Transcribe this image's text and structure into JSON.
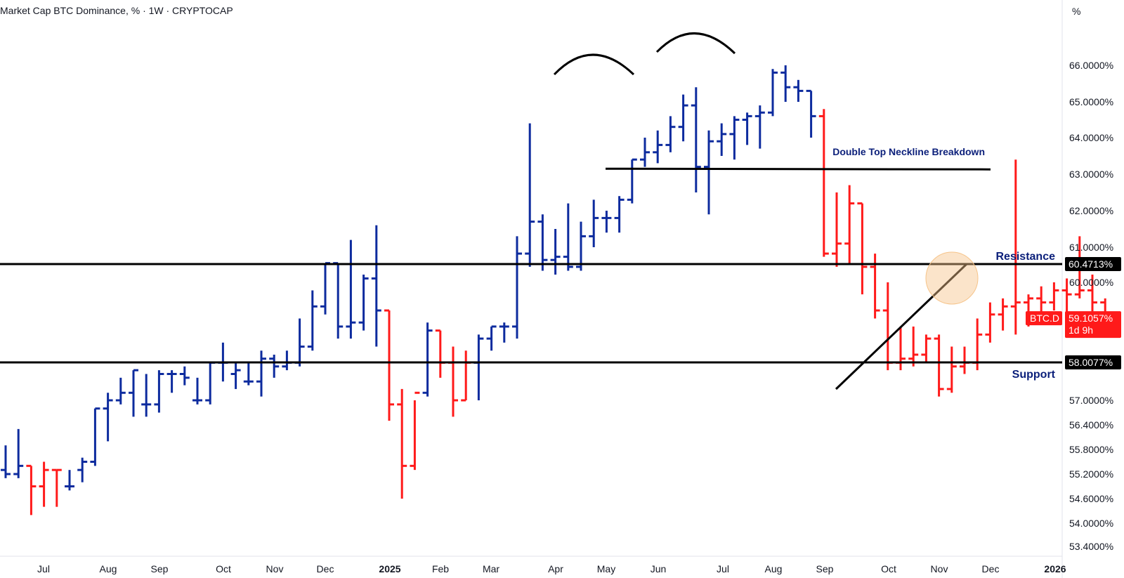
{
  "header": {
    "title": "Market Cap BTC Dominance, % · 1W · CRYPTOCAP"
  },
  "axis_unit": "%",
  "colors": {
    "up": "#0d2b9e",
    "down": "#ff1a1a",
    "line": "#000000",
    "label": "#0b1f7a",
    "highlight": "#f6c48a"
  },
  "chart_data": {
    "type": "ohlc",
    "symbol": "BTC.D",
    "interval": "1W",
    "y_ticks": [
      "66.0000%",
      "65.0000%",
      "64.0000%",
      "63.0000%",
      "62.0000%",
      "61.0000%",
      "60.0000%",
      "57.0000%",
      "56.4000%",
      "55.8000%",
      "55.2000%",
      "54.6000%",
      "54.0000%",
      "53.4000%"
    ],
    "x_ticks": [
      {
        "label": "Jul",
        "bold": false
      },
      {
        "label": "Aug",
        "bold": false
      },
      {
        "label": "Sep",
        "bold": false
      },
      {
        "label": "Oct",
        "bold": false
      },
      {
        "label": "Nov",
        "bold": false
      },
      {
        "label": "Dec",
        "bold": false
      },
      {
        "label": "2025",
        "bold": true
      },
      {
        "label": "Feb",
        "bold": false
      },
      {
        "label": "Mar",
        "bold": false
      },
      {
        "label": "Apr",
        "bold": false
      },
      {
        "label": "May",
        "bold": false
      },
      {
        "label": "Jun",
        "bold": false
      },
      {
        "label": "Jul",
        "bold": false
      },
      {
        "label": "Aug",
        "bold": false
      },
      {
        "label": "Sep",
        "bold": false
      },
      {
        "label": "Oct",
        "bold": false
      },
      {
        "label": "Nov",
        "bold": false
      },
      {
        "label": "Dec",
        "bold": false
      },
      {
        "label": "2026",
        "bold": true
      }
    ],
    "levels": [
      {
        "name": "Resistance",
        "value": 60.4713,
        "label": "60.4713%"
      },
      {
        "name": "Support",
        "value": 58.0077,
        "label": "58.0077%"
      }
    ],
    "neckline": {
      "label": "Double Top Neckline Breakdown",
      "value": 63.15
    },
    "current": {
      "symbol": "BTC.D",
      "value": 59.1057,
      "label": "59.1057%",
      "countdown": "1d 9h"
    },
    "bars": [
      {
        "o": 55.3,
        "h": 55.9,
        "l": 55.1,
        "c": 55.2,
        "up": true
      },
      {
        "o": 55.2,
        "h": 56.3,
        "l": 55.1,
        "c": 55.4,
        "up": true
      },
      {
        "o": 55.4,
        "h": 55.4,
        "l": 54.2,
        "c": 54.9,
        "up": false
      },
      {
        "o": 54.9,
        "h": 55.5,
        "l": 54.4,
        "c": 55.3,
        "up": false
      },
      {
        "o": 55.3,
        "h": 55.3,
        "l": 54.4,
        "c": 55.3,
        "up": false
      },
      {
        "o": 54.9,
        "h": 55.3,
        "l": 54.8,
        "c": 54.9,
        "up": true
      },
      {
        "o": 55.3,
        "h": 55.6,
        "l": 55.0,
        "c": 55.5,
        "up": true
      },
      {
        "o": 55.5,
        "h": 56.8,
        "l": 55.4,
        "c": 56.8,
        "up": true
      },
      {
        "o": 56.8,
        "h": 57.2,
        "l": 56.0,
        "c": 57.0,
        "up": true
      },
      {
        "o": 57.0,
        "h": 57.6,
        "l": 56.9,
        "c": 57.2,
        "up": true
      },
      {
        "o": 57.2,
        "h": 57.8,
        "l": 56.6,
        "c": 57.8,
        "up": true
      },
      {
        "o": 56.9,
        "h": 57.7,
        "l": 56.6,
        "c": 56.9,
        "up": true
      },
      {
        "o": 56.9,
        "h": 57.8,
        "l": 56.7,
        "c": 57.7,
        "up": true
      },
      {
        "o": 57.7,
        "h": 57.8,
        "l": 57.2,
        "c": 57.7,
        "up": true
      },
      {
        "o": 57.7,
        "h": 57.9,
        "l": 57.4,
        "c": 57.6,
        "up": true
      },
      {
        "o": 57.0,
        "h": 57.6,
        "l": 56.9,
        "c": 57.0,
        "up": true
      },
      {
        "o": 57.0,
        "h": 58.0,
        "l": 56.9,
        "c": 58.0,
        "up": true
      },
      {
        "o": 58.0,
        "h": 58.5,
        "l": 57.5,
        "c": 58.0,
        "up": true
      },
      {
        "o": 57.7,
        "h": 58.0,
        "l": 57.3,
        "c": 57.8,
        "up": true
      },
      {
        "o": 57.5,
        "h": 58.0,
        "l": 57.4,
        "c": 57.5,
        "up": true
      },
      {
        "o": 57.5,
        "h": 58.3,
        "l": 57.1,
        "c": 58.1,
        "up": true
      },
      {
        "o": 58.1,
        "h": 58.2,
        "l": 57.6,
        "c": 57.9,
        "up": true
      },
      {
        "o": 57.9,
        "h": 58.3,
        "l": 57.8,
        "c": 58.0,
        "up": true
      },
      {
        "o": 58.0,
        "h": 59.1,
        "l": 57.9,
        "c": 58.4,
        "up": true
      },
      {
        "o": 58.4,
        "h": 59.8,
        "l": 58.3,
        "c": 59.4,
        "up": true
      },
      {
        "o": 59.4,
        "h": 60.5,
        "l": 59.2,
        "c": 60.5,
        "up": true
      },
      {
        "o": 60.5,
        "h": 60.5,
        "l": 58.6,
        "c": 58.9,
        "up": true
      },
      {
        "o": 58.9,
        "h": 61.2,
        "l": 58.6,
        "c": 59.0,
        "up": true
      },
      {
        "o": 59.0,
        "h": 60.2,
        "l": 58.8,
        "c": 60.1,
        "up": true
      },
      {
        "o": 60.1,
        "h": 61.6,
        "l": 58.4,
        "c": 59.3,
        "up": true
      },
      {
        "o": 59.3,
        "h": 59.3,
        "l": 56.5,
        "c": 56.9,
        "up": false
      },
      {
        "o": 56.9,
        "h": 57.3,
        "l": 54.6,
        "c": 55.4,
        "up": false
      },
      {
        "o": 55.4,
        "h": 57.0,
        "l": 55.3,
        "c": 57.2,
        "up": false
      },
      {
        "o": 57.2,
        "h": 59.0,
        "l": 57.1,
        "c": 58.8,
        "up": true
      },
      {
        "o": 58.8,
        "h": 58.8,
        "l": 57.6,
        "c": 58.0,
        "up": false
      },
      {
        "o": 58.0,
        "h": 58.4,
        "l": 56.6,
        "c": 57.0,
        "up": false
      },
      {
        "o": 57.0,
        "h": 58.3,
        "l": 57.0,
        "c": 58.0,
        "up": false
      },
      {
        "o": 58.0,
        "h": 58.7,
        "l": 57.0,
        "c": 58.6,
        "up": true
      },
      {
        "o": 58.6,
        "h": 58.9,
        "l": 58.3,
        "c": 58.9,
        "up": true
      },
      {
        "o": 58.9,
        "h": 59.0,
        "l": 58.5,
        "c": 58.9,
        "up": true
      },
      {
        "o": 58.9,
        "h": 61.3,
        "l": 58.6,
        "c": 60.8,
        "up": true
      },
      {
        "o": 60.8,
        "h": 64.4,
        "l": 60.4,
        "c": 61.7,
        "up": true
      },
      {
        "o": 61.7,
        "h": 61.9,
        "l": 60.3,
        "c": 60.6,
        "up": true
      },
      {
        "o": 60.6,
        "h": 61.5,
        "l": 60.2,
        "c": 60.7,
        "up": true
      },
      {
        "o": 60.7,
        "h": 62.2,
        "l": 60.3,
        "c": 60.4,
        "up": true
      },
      {
        "o": 60.4,
        "h": 61.7,
        "l": 60.3,
        "c": 61.3,
        "up": true
      },
      {
        "o": 61.3,
        "h": 62.3,
        "l": 61.0,
        "c": 61.8,
        "up": true
      },
      {
        "o": 61.8,
        "h": 62.0,
        "l": 61.4,
        "c": 61.8,
        "up": true
      },
      {
        "o": 61.8,
        "h": 62.4,
        "l": 61.4,
        "c": 62.3,
        "up": true
      },
      {
        "o": 62.3,
        "h": 63.4,
        "l": 62.2,
        "c": 63.4,
        "up": true
      },
      {
        "o": 63.4,
        "h": 64.0,
        "l": 63.2,
        "c": 63.6,
        "up": true
      },
      {
        "o": 63.6,
        "h": 64.2,
        "l": 63.3,
        "c": 63.8,
        "up": true
      },
      {
        "o": 63.8,
        "h": 64.6,
        "l": 63.6,
        "c": 64.3,
        "up": true
      },
      {
        "o": 64.3,
        "h": 65.2,
        "l": 63.9,
        "c": 64.9,
        "up": true
      },
      {
        "o": 64.9,
        "h": 65.4,
        "l": 62.5,
        "c": 63.2,
        "up": true
      },
      {
        "o": 63.2,
        "h": 64.2,
        "l": 61.9,
        "c": 63.9,
        "up": true
      },
      {
        "o": 63.9,
        "h": 64.4,
        "l": 63.5,
        "c": 64.1,
        "up": true
      },
      {
        "o": 64.1,
        "h": 64.6,
        "l": 63.4,
        "c": 64.5,
        "up": true
      },
      {
        "o": 64.5,
        "h": 64.7,
        "l": 63.8,
        "c": 64.6,
        "up": true
      },
      {
        "o": 64.6,
        "h": 64.9,
        "l": 63.7,
        "c": 64.7,
        "up": true
      },
      {
        "o": 64.7,
        "h": 65.9,
        "l": 64.6,
        "c": 65.8,
        "up": true
      },
      {
        "o": 65.8,
        "h": 66.0,
        "l": 65.0,
        "c": 65.4,
        "up": true
      },
      {
        "o": 65.4,
        "h": 65.6,
        "l": 65.0,
        "c": 65.3,
        "up": true
      },
      {
        "o": 65.3,
        "h": 65.3,
        "l": 64.0,
        "c": 64.6,
        "up": true
      },
      {
        "o": 64.6,
        "h": 64.8,
        "l": 60.7,
        "c": 60.8,
        "up": false
      },
      {
        "o": 60.8,
        "h": 62.5,
        "l": 60.4,
        "c": 61.1,
        "up": false
      },
      {
        "o": 61.1,
        "h": 62.7,
        "l": 60.5,
        "c": 62.2,
        "up": false
      },
      {
        "o": 62.2,
        "h": 62.2,
        "l": 59.7,
        "c": 60.4,
        "up": false
      },
      {
        "o": 60.4,
        "h": 60.8,
        "l": 59.1,
        "c": 59.3,
        "up": false
      },
      {
        "o": 59.3,
        "h": 60.0,
        "l": 57.8,
        "c": 58.0,
        "up": false
      },
      {
        "o": 58.0,
        "h": 58.9,
        "l": 57.8,
        "c": 58.1,
        "up": false
      },
      {
        "o": 58.1,
        "h": 58.9,
        "l": 57.9,
        "c": 58.2,
        "up": false
      },
      {
        "o": 58.2,
        "h": 58.7,
        "l": 58.0,
        "c": 58.6,
        "up": false
      },
      {
        "o": 58.6,
        "h": 58.7,
        "l": 57.1,
        "c": 57.3,
        "up": false
      },
      {
        "o": 57.3,
        "h": 58.4,
        "l": 57.2,
        "c": 57.9,
        "up": false
      },
      {
        "o": 57.9,
        "h": 58.4,
        "l": 57.7,
        "c": 58.0,
        "up": false
      },
      {
        "o": 58.0,
        "h": 59.1,
        "l": 57.8,
        "c": 58.7,
        "up": false
      },
      {
        "o": 58.7,
        "h": 59.5,
        "l": 58.5,
        "c": 59.2,
        "up": false
      },
      {
        "o": 59.2,
        "h": 59.6,
        "l": 58.8,
        "c": 59.4,
        "up": false
      },
      {
        "o": 59.4,
        "h": 63.4,
        "l": 58.7,
        "c": 59.5,
        "up": false
      },
      {
        "o": 59.5,
        "h": 59.7,
        "l": 58.9,
        "c": 59.6,
        "up": false
      },
      {
        "o": 59.6,
        "h": 59.9,
        "l": 59.2,
        "c": 59.5,
        "up": false
      },
      {
        "o": 59.5,
        "h": 60.0,
        "l": 59.3,
        "c": 59.8,
        "up": false
      },
      {
        "o": 59.8,
        "h": 60.1,
        "l": 59.2,
        "c": 59.7,
        "up": false
      },
      {
        "o": 59.7,
        "h": 61.3,
        "l": 59.6,
        "c": 59.8,
        "up": false
      },
      {
        "o": 59.8,
        "h": 60.2,
        "l": 59.2,
        "c": 59.5,
        "up": false
      },
      {
        "o": 59.5,
        "h": 59.6,
        "l": 58.8,
        "c": 59.1,
        "up": false
      }
    ]
  }
}
